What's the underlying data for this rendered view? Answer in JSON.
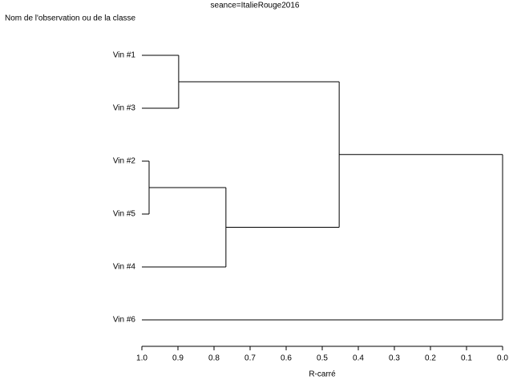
{
  "chart_data": {
    "type": "dendrogram",
    "title": "seance=ItalieRouge2016",
    "y_label": "Nom de l'observation ou de la classe",
    "x_label": "R-carré",
    "xlim": [
      1,
      0
    ],
    "xticks": [
      {
        "value": 1,
        "label": "1.0"
      },
      0.9,
      0.8,
      0.7,
      0.6,
      0.5,
      0.4,
      0.3,
      0.2,
      0.1,
      {
        "value": 0,
        "label": "0.0"
      }
    ],
    "tree": {
      "height": 0,
      "children": [
        {
          "height": 0.453,
          "children": [
            {
              "height": 0.898,
              "children": [
                {
                  "label": "Vin #1"
                },
                {
                  "label": "Vin #3"
                }
              ]
            },
            {
              "height": 0.767,
              "children": [
                {
                  "height": 0.98,
                  "children": [
                    {
                      "label": "Vin #2"
                    },
                    {
                      "label": "Vin #5"
                    }
                  ]
                },
                {
                  "label": "Vin #4"
                }
              ]
            }
          ]
        },
        {
          "label": "Vin #6"
        }
      ]
    }
  }
}
